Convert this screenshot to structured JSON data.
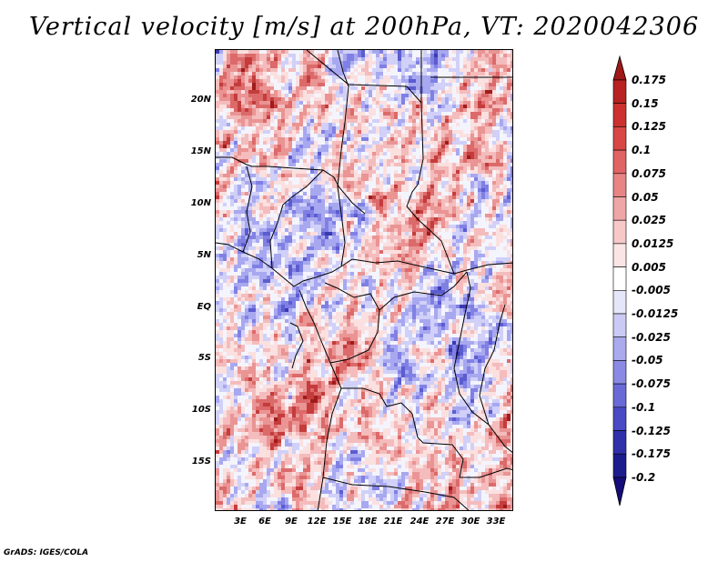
{
  "title": "Vertical velocity [m/s] at 200hPa, VT: 2020042306",
  "credit": "GrADS: IGES/COLA",
  "y_axis": {
    "labels": [
      "20N",
      "15N",
      "10N",
      "5N",
      "EQ",
      "5S",
      "10S",
      "15S"
    ]
  },
  "x_axis": {
    "labels": [
      "3E",
      "6E",
      "9E",
      "12E",
      "15E",
      "18E",
      "21E",
      "24E",
      "27E",
      "30E",
      "33E"
    ]
  },
  "colorbar": {
    "labels": [
      "0.175",
      "0.15",
      "0.125",
      "0.1",
      "0.075",
      "0.05",
      "0.025",
      "0.0125",
      "0.005",
      "-0.005",
      "-0.0125",
      "-0.025",
      "-0.05",
      "-0.075",
      "-0.1",
      "-0.125",
      "-0.175",
      "-0.2"
    ],
    "colors": [
      "#a01818",
      "#b82222",
      "#cc3030",
      "#d84646",
      "#e06464",
      "#e88484",
      "#efa6a6",
      "#f6c8c8",
      "#fbe4e4",
      "#ffffff",
      "#e6e6fb",
      "#cacaf4",
      "#aaaaee",
      "#8a8ae4",
      "#6a6ad6",
      "#4a4ac4",
      "#3030aa",
      "#1c1c8c",
      "#140c78"
    ]
  }
}
